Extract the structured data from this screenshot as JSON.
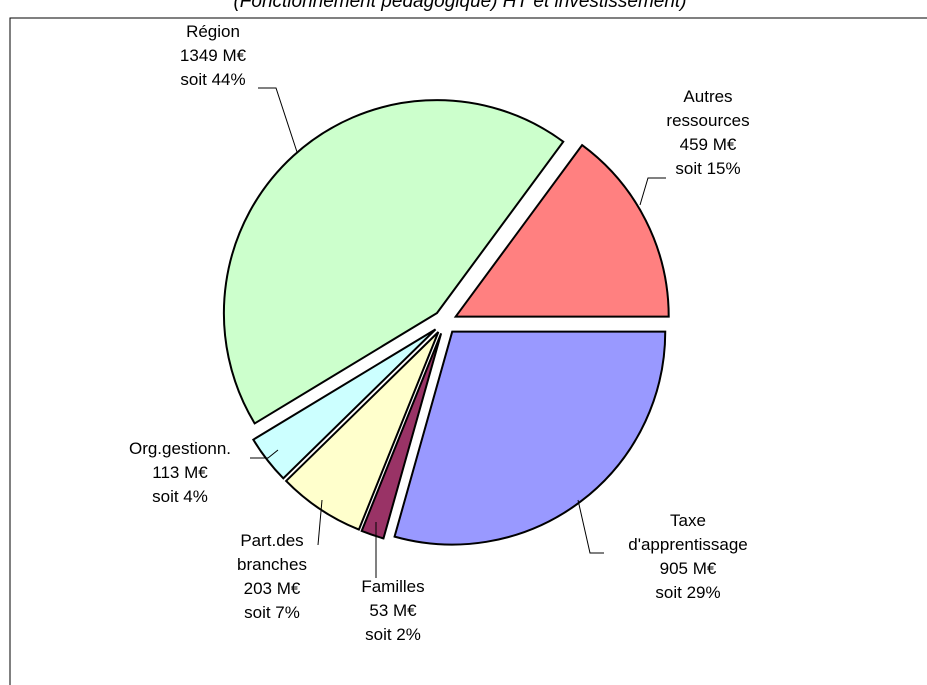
{
  "chart_data": {
    "type": "pie",
    "subtitle": "(Fonctionnement pédagogique) HT et investissement)",
    "categories": [
      "Autres ressources",
      "Région",
      "Org.gestionn.",
      "Part.des branches",
      "Familles",
      "Taxe d'apprentissage"
    ],
    "values": [
      459,
      1349,
      113,
      203,
      53,
      905
    ],
    "value_labels": [
      "459 M€",
      "1349 M€",
      "113 M€",
      "203 M€",
      "53 M€",
      "905 M€"
    ],
    "percents": [
      15,
      44,
      4,
      7,
      2,
      29
    ],
    "percent_labels": [
      "soit 15%",
      "soit 44%",
      "soit 4%",
      "soit 7%",
      "soit 2%",
      "soit 29%"
    ],
    "colors": [
      "#ff8080",
      "#ccffcc",
      "#ccffff",
      "#ffffcc",
      "#993366",
      "#9999ff"
    ]
  }
}
